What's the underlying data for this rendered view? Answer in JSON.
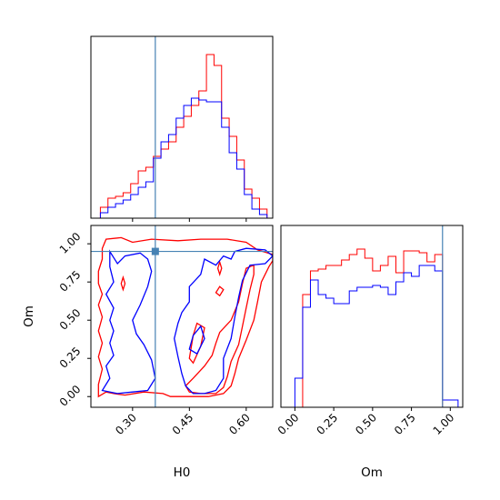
{
  "chart_data": {
    "type": "corner",
    "parameters": [
      "H0",
      "Om"
    ],
    "truth": {
      "H0": 0.36,
      "Om": 0.95
    },
    "truth_color": "#4682b4",
    "series": [
      {
        "color": "#ff0000"
      },
      {
        "color": "#0000ff"
      }
    ],
    "panels": [
      {
        "id": "hist-H0",
        "type": "histogram",
        "xlim": [
          0.19,
          0.67
        ],
        "xticks": [
          0.3,
          0.45,
          0.6
        ],
        "bin_edges": [
          0.215,
          0.235,
          0.255,
          0.275,
          0.295,
          0.315,
          0.335,
          0.355,
          0.375,
          0.395,
          0.415,
          0.435,
          0.455,
          0.475,
          0.495,
          0.515,
          0.535,
          0.555,
          0.575,
          0.595,
          0.615,
          0.635,
          0.655,
          0.67
        ],
        "counts": [
          [
            0.06,
            0.11,
            0.12,
            0.14,
            0.19,
            0.26,
            0.28,
            0.34,
            0.38,
            0.42,
            0.5,
            0.56,
            0.62,
            0.7,
            0.9,
            0.84,
            0.55,
            0.45,
            0.32,
            0.16,
            0.11,
            0.05,
            0.0
          ],
          [
            0.03,
            0.06,
            0.08,
            0.1,
            0.13,
            0.17,
            0.2,
            0.33,
            0.42,
            0.46,
            0.55,
            0.62,
            0.66,
            0.65,
            0.64,
            0.64,
            0.5,
            0.36,
            0.27,
            0.13,
            0.05,
            0.02,
            0.0
          ]
        ]
      },
      {
        "id": "hist-Om",
        "type": "histogram",
        "xlim": [
          -0.09,
          1.08
        ],
        "xticks": [
          0.0,
          0.25,
          0.5,
          0.75,
          1.0
        ],
        "xticklabels": [
          "0.00",
          "0.25",
          "0.50",
          "0.75",
          "1.00"
        ],
        "xlabel": "Om",
        "bin_edges": [
          -0.05,
          0.0,
          0.05,
          0.1,
          0.15,
          0.2,
          0.25,
          0.3,
          0.35,
          0.4,
          0.45,
          0.5,
          0.55,
          0.6,
          0.65,
          0.7,
          0.75,
          0.8,
          0.85,
          0.9,
          0.95,
          1.0,
          1.05,
          1.08
        ],
        "counts": [
          [
            0.0,
            0.0,
            0.62,
            0.75,
            0.76,
            0.78,
            0.78,
            0.81,
            0.84,
            0.87,
            0.82,
            0.75,
            0.78,
            0.83,
            0.74,
            0.86,
            0.86,
            0.85,
            0.8,
            0.84,
            0.0,
            0.0,
            0.0
          ],
          [
            0.0,
            0.16,
            0.55,
            0.7,
            0.62,
            0.6,
            0.57,
            0.57,
            0.64,
            0.66,
            0.66,
            0.67,
            0.66,
            0.62,
            0.69,
            0.74,
            0.72,
            0.78,
            0.78,
            0.75,
            0.04,
            0.04,
            0.0
          ]
        ]
      },
      {
        "id": "joint-H0-Om",
        "type": "contour",
        "xlim": [
          0.19,
          0.67
        ],
        "ylim": [
          -0.07,
          1.12
        ],
        "xticks": [
          0.3,
          0.45,
          0.6
        ],
        "xticklabels": [
          "0.30",
          "0.45",
          "0.60"
        ],
        "yticks": [
          0.0,
          0.25,
          0.5,
          0.75,
          1.0
        ],
        "yticklabels": [
          "0.00",
          "0.25",
          "0.50",
          "0.75",
          "1.00"
        ],
        "xlabel": "H0",
        "ylabel": "Om",
        "contours": [
          {
            "series": 0,
            "points": [
              [
                0.21,
                0.0
              ],
              [
                0.23,
                0.03
              ],
              [
                0.25,
                0.02
              ],
              [
                0.28,
                0.01
              ],
              [
                0.33,
                0.03
              ],
              [
                0.38,
                0.02
              ],
              [
                0.4,
                0.0
              ],
              [
                0.45,
                0.0
              ],
              [
                0.5,
                0.0
              ],
              [
                0.54,
                0.02
              ],
              [
                0.56,
                0.07
              ],
              [
                0.57,
                0.15
              ],
              [
                0.58,
                0.25
              ],
              [
                0.6,
                0.37
              ],
              [
                0.62,
                0.5
              ],
              [
                0.63,
                0.62
              ],
              [
                0.64,
                0.75
              ],
              [
                0.66,
                0.85
              ],
              [
                0.67,
                0.89
              ],
              [
                0.67,
                0.93
              ],
              [
                0.63,
                0.96
              ],
              [
                0.6,
                1.01
              ],
              [
                0.55,
                1.03
              ],
              [
                0.48,
                1.03
              ],
              [
                0.42,
                1.02
              ],
              [
                0.35,
                1.03
              ],
              [
                0.3,
                1.01
              ],
              [
                0.27,
                1.04
              ],
              [
                0.23,
                1.03
              ],
              [
                0.22,
                0.97
              ],
              [
                0.22,
                0.9
              ],
              [
                0.21,
                0.82
              ],
              [
                0.21,
                0.74
              ],
              [
                0.22,
                0.67
              ],
              [
                0.21,
                0.6
              ],
              [
                0.22,
                0.52
              ],
              [
                0.21,
                0.43
              ],
              [
                0.22,
                0.35
              ],
              [
                0.21,
                0.26
              ],
              [
                0.22,
                0.18
              ],
              [
                0.21,
                0.08
              ],
              [
                0.21,
                0.0
              ]
            ]
          },
          {
            "series": 0,
            "points": [
              [
                0.45,
                0.03
              ],
              [
                0.48,
                0.02
              ],
              [
                0.52,
                0.02
              ],
              [
                0.54,
                0.06
              ],
              [
                0.55,
                0.13
              ],
              [
                0.56,
                0.23
              ],
              [
                0.58,
                0.34
              ],
              [
                0.59,
                0.46
              ],
              [
                0.6,
                0.58
              ],
              [
                0.61,
                0.7
              ],
              [
                0.62,
                0.8
              ],
              [
                0.62,
                0.86
              ],
              [
                0.6,
                0.84
              ],
              [
                0.59,
                0.74
              ],
              [
                0.58,
                0.62
              ],
              [
                0.56,
                0.5
              ],
              [
                0.53,
                0.42
              ],
              [
                0.52,
                0.35
              ],
              [
                0.51,
                0.27
              ],
              [
                0.49,
                0.2
              ],
              [
                0.46,
                0.12
              ],
              [
                0.44,
                0.07
              ],
              [
                0.45,
                0.03
              ]
            ]
          },
          {
            "series": 0,
            "points": [
              [
                0.45,
                0.25
              ],
              [
                0.46,
                0.4
              ],
              [
                0.47,
                0.48
              ],
              [
                0.49,
                0.45
              ],
              [
                0.48,
                0.33
              ],
              [
                0.46,
                0.22
              ],
              [
                0.45,
                0.25
              ]
            ]
          },
          {
            "series": 0,
            "points": [
              [
                0.27,
                0.74
              ],
              [
                0.275,
                0.78
              ],
              [
                0.28,
                0.74
              ],
              [
                0.275,
                0.7
              ],
              [
                0.27,
                0.74
              ]
            ]
          },
          {
            "series": 0,
            "points": [
              [
                0.525,
                0.84
              ],
              [
                0.53,
                0.88
              ],
              [
                0.535,
                0.84
              ],
              [
                0.53,
                0.8
              ],
              [
                0.525,
                0.84
              ]
            ]
          },
          {
            "series": 0,
            "points": [
              [
                0.52,
                0.68
              ],
              [
                0.53,
                0.72
              ],
              [
                0.54,
                0.7
              ],
              [
                0.53,
                0.66
              ],
              [
                0.52,
                0.68
              ]
            ]
          },
          {
            "series": 1,
            "points": [
              [
                0.22,
                0.04
              ],
              [
                0.26,
                0.02
              ],
              [
                0.3,
                0.03
              ],
              [
                0.34,
                0.04
              ],
              [
                0.36,
                0.12
              ],
              [
                0.35,
                0.24
              ],
              [
                0.33,
                0.34
              ],
              [
                0.31,
                0.41
              ],
              [
                0.3,
                0.5
              ],
              [
                0.32,
                0.6
              ],
              [
                0.34,
                0.72
              ],
              [
                0.35,
                0.82
              ],
              [
                0.34,
                0.9
              ],
              [
                0.32,
                0.94
              ],
              [
                0.28,
                0.92
              ],
              [
                0.26,
                0.87
              ],
              [
                0.24,
                0.95
              ],
              [
                0.24,
                0.85
              ],
              [
                0.25,
                0.75
              ],
              [
                0.23,
                0.67
              ],
              [
                0.25,
                0.58
              ],
              [
                0.24,
                0.5
              ],
              [
                0.25,
                0.43
              ],
              [
                0.24,
                0.35
              ],
              [
                0.25,
                0.27
              ],
              [
                0.23,
                0.2
              ],
              [
                0.24,
                0.12
              ],
              [
                0.22,
                0.04
              ]
            ]
          },
          {
            "series": 1,
            "points": [
              [
                0.46,
                0.02
              ],
              [
                0.49,
                0.02
              ],
              [
                0.52,
                0.04
              ],
              [
                0.54,
                0.12
              ],
              [
                0.54,
                0.25
              ],
              [
                0.56,
                0.38
              ],
              [
                0.57,
                0.52
              ],
              [
                0.58,
                0.65
              ],
              [
                0.59,
                0.76
              ],
              [
                0.61,
                0.86
              ],
              [
                0.65,
                0.87
              ],
              [
                0.67,
                0.92
              ],
              [
                0.65,
                0.96
              ],
              [
                0.6,
                0.97
              ],
              [
                0.57,
                0.95
              ],
              [
                0.56,
                0.9
              ],
              [
                0.54,
                0.92
              ],
              [
                0.52,
                0.86
              ],
              [
                0.49,
                0.9
              ],
              [
                0.48,
                0.8
              ],
              [
                0.45,
                0.72
              ],
              [
                0.45,
                0.62
              ],
              [
                0.43,
                0.55
              ],
              [
                0.42,
                0.48
              ],
              [
                0.41,
                0.38
              ],
              [
                0.42,
                0.26
              ],
              [
                0.43,
                0.15
              ],
              [
                0.44,
                0.07
              ],
              [
                0.46,
                0.02
              ]
            ]
          },
          {
            "series": 1,
            "points": [
              [
                0.45,
                0.31
              ],
              [
                0.46,
                0.4
              ],
              [
                0.48,
                0.46
              ],
              [
                0.49,
                0.38
              ],
              [
                0.47,
                0.28
              ],
              [
                0.45,
                0.31
              ]
            ]
          }
        ]
      }
    ]
  }
}
